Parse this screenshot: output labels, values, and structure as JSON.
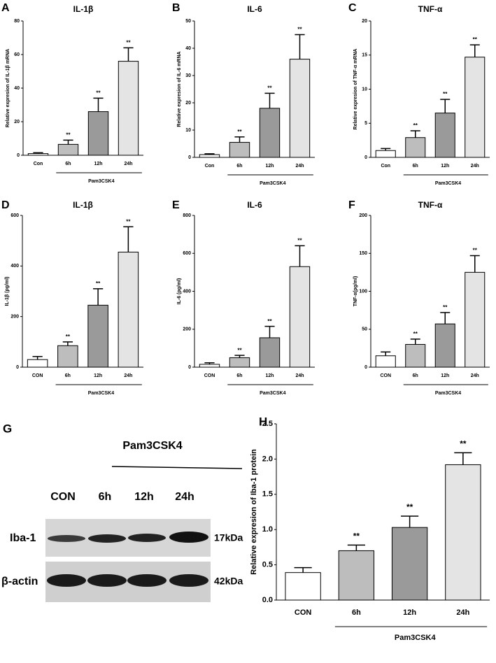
{
  "chart_data": [
    {
      "type": "bar",
      "label": "A",
      "title": "IL-1β",
      "ylabel": "Relative expresion of IL-1β mRNA",
      "categories": [
        "Con",
        "6h",
        "12h",
        "24h"
      ],
      "values": [
        1,
        6.5,
        26,
        56
      ],
      "errors": [
        0.5,
        2.5,
        8,
        8
      ],
      "annotations": [
        null,
        "**",
        "**",
        "**"
      ],
      "group_label": "Pam3CSK4",
      "colors": [
        "#ffffff",
        "#bdbdbd",
        "#9a9a9a",
        "#e4e4e4"
      ],
      "ylim": [
        0,
        80
      ],
      "yticks": [
        0,
        20,
        40,
        60,
        80
      ]
    },
    {
      "type": "bar",
      "label": "B",
      "title": "IL-6",
      "ylabel": "Relative expresion of IL-6 mRNA",
      "categories": [
        "Con",
        "6h",
        "12h",
        "24h"
      ],
      "values": [
        1,
        5.5,
        18,
        36
      ],
      "errors": [
        0.3,
        2,
        5.5,
        9
      ],
      "annotations": [
        null,
        "**",
        "**",
        "**"
      ],
      "group_label": "Pam3CSK4",
      "colors": [
        "#ffffff",
        "#bdbdbd",
        "#9a9a9a",
        "#e4e4e4"
      ],
      "ylim": [
        0,
        50
      ],
      "yticks": [
        0,
        10,
        20,
        30,
        40,
        50
      ]
    },
    {
      "type": "bar",
      "label": "C",
      "title": "TNF-α",
      "ylabel": "Relative expresion of TNF-α mRNA",
      "categories": [
        "Con",
        "6h",
        "12h",
        "24h"
      ],
      "values": [
        1,
        2.9,
        6.5,
        14.7
      ],
      "errors": [
        0.3,
        1,
        2,
        1.8
      ],
      "annotations": [
        null,
        "**",
        "**",
        "**"
      ],
      "group_label": "Pam3CSK4",
      "colors": [
        "#ffffff",
        "#bdbdbd",
        "#9a9a9a",
        "#e4e4e4"
      ],
      "ylim": [
        0,
        20
      ],
      "yticks": [
        0,
        5,
        10,
        15,
        20
      ]
    },
    {
      "type": "bar",
      "label": "D",
      "title": "IL-1β",
      "ylabel": "IL-1β (pg/ml)",
      "categories": [
        "CON",
        "6h",
        "12h",
        "24h"
      ],
      "values": [
        30,
        85,
        245,
        455
      ],
      "errors": [
        12,
        15,
        65,
        100
      ],
      "annotations": [
        null,
        "**",
        "**",
        "**"
      ],
      "group_label": "Pam3CSK4",
      "colors": [
        "#ffffff",
        "#bdbdbd",
        "#9a9a9a",
        "#e4e4e4"
      ],
      "ylim": [
        0,
        600
      ],
      "yticks": [
        0,
        200,
        400,
        600
      ]
    },
    {
      "type": "bar",
      "label": "E",
      "title": "IL-6",
      "ylabel": "IL-6 (pg/ml)",
      "categories": [
        "CON",
        "6h",
        "12h",
        "24h"
      ],
      "values": [
        15,
        50,
        155,
        530
      ],
      "errors": [
        8,
        12,
        60,
        110
      ],
      "annotations": [
        null,
        "**",
        "**",
        "**"
      ],
      "group_label": "Pam3CSK4",
      "colors": [
        "#ffffff",
        "#bdbdbd",
        "#9a9a9a",
        "#e4e4e4"
      ],
      "ylim": [
        0,
        800
      ],
      "yticks": [
        0,
        200,
        400,
        600,
        800
      ]
    },
    {
      "type": "bar",
      "label": "F",
      "title": "TNF-α",
      "ylabel": "TNF-α(pg/ml)",
      "categories": [
        "CON",
        "6h",
        "12h",
        "24h"
      ],
      "values": [
        15,
        30,
        57,
        125
      ],
      "errors": [
        5,
        7,
        15,
        22
      ],
      "annotations": [
        null,
        "**",
        "**",
        "**"
      ],
      "group_label": "Pam3CSK4",
      "colors": [
        "#ffffff",
        "#bdbdbd",
        "#9a9a9a",
        "#e4e4e4"
      ],
      "ylim": [
        0,
        200
      ],
      "yticks": [
        0,
        50,
        100,
        150,
        200
      ]
    },
    {
      "type": "bar",
      "label": "H",
      "ylabel": "Relative expresion of Iba-1 protein",
      "categories": [
        "CON",
        "6h",
        "12h",
        "24h"
      ],
      "values": [
        0.39,
        0.7,
        1.03,
        1.92
      ],
      "errors": [
        0.07,
        0.08,
        0.16,
        0.17
      ],
      "annotations": [
        null,
        "**",
        "**",
        "**"
      ],
      "group_label": "Pam3CSK4",
      "colors": [
        "#ffffff",
        "#bdbdbd",
        "#9a9a9a",
        "#e4e4e4"
      ],
      "ylim": [
        0,
        2.5
      ],
      "yticks": [
        {
          "value": 0,
          "label": "0.0"
        },
        0.5,
        {
          "value": 1,
          "label": "1.0"
        },
        1.5,
        {
          "value": 2,
          "label": "2.0"
        },
        2.5
      ]
    }
  ],
  "blot": {
    "label": "G",
    "treatment": "Pam3CSK4",
    "lanes": [
      "CON",
      "6h",
      "12h",
      "24h"
    ],
    "rows": [
      {
        "name": "Iba-1",
        "size": "17kDa"
      },
      {
        "name": "β-actin",
        "size": "42kDa"
      }
    ]
  }
}
